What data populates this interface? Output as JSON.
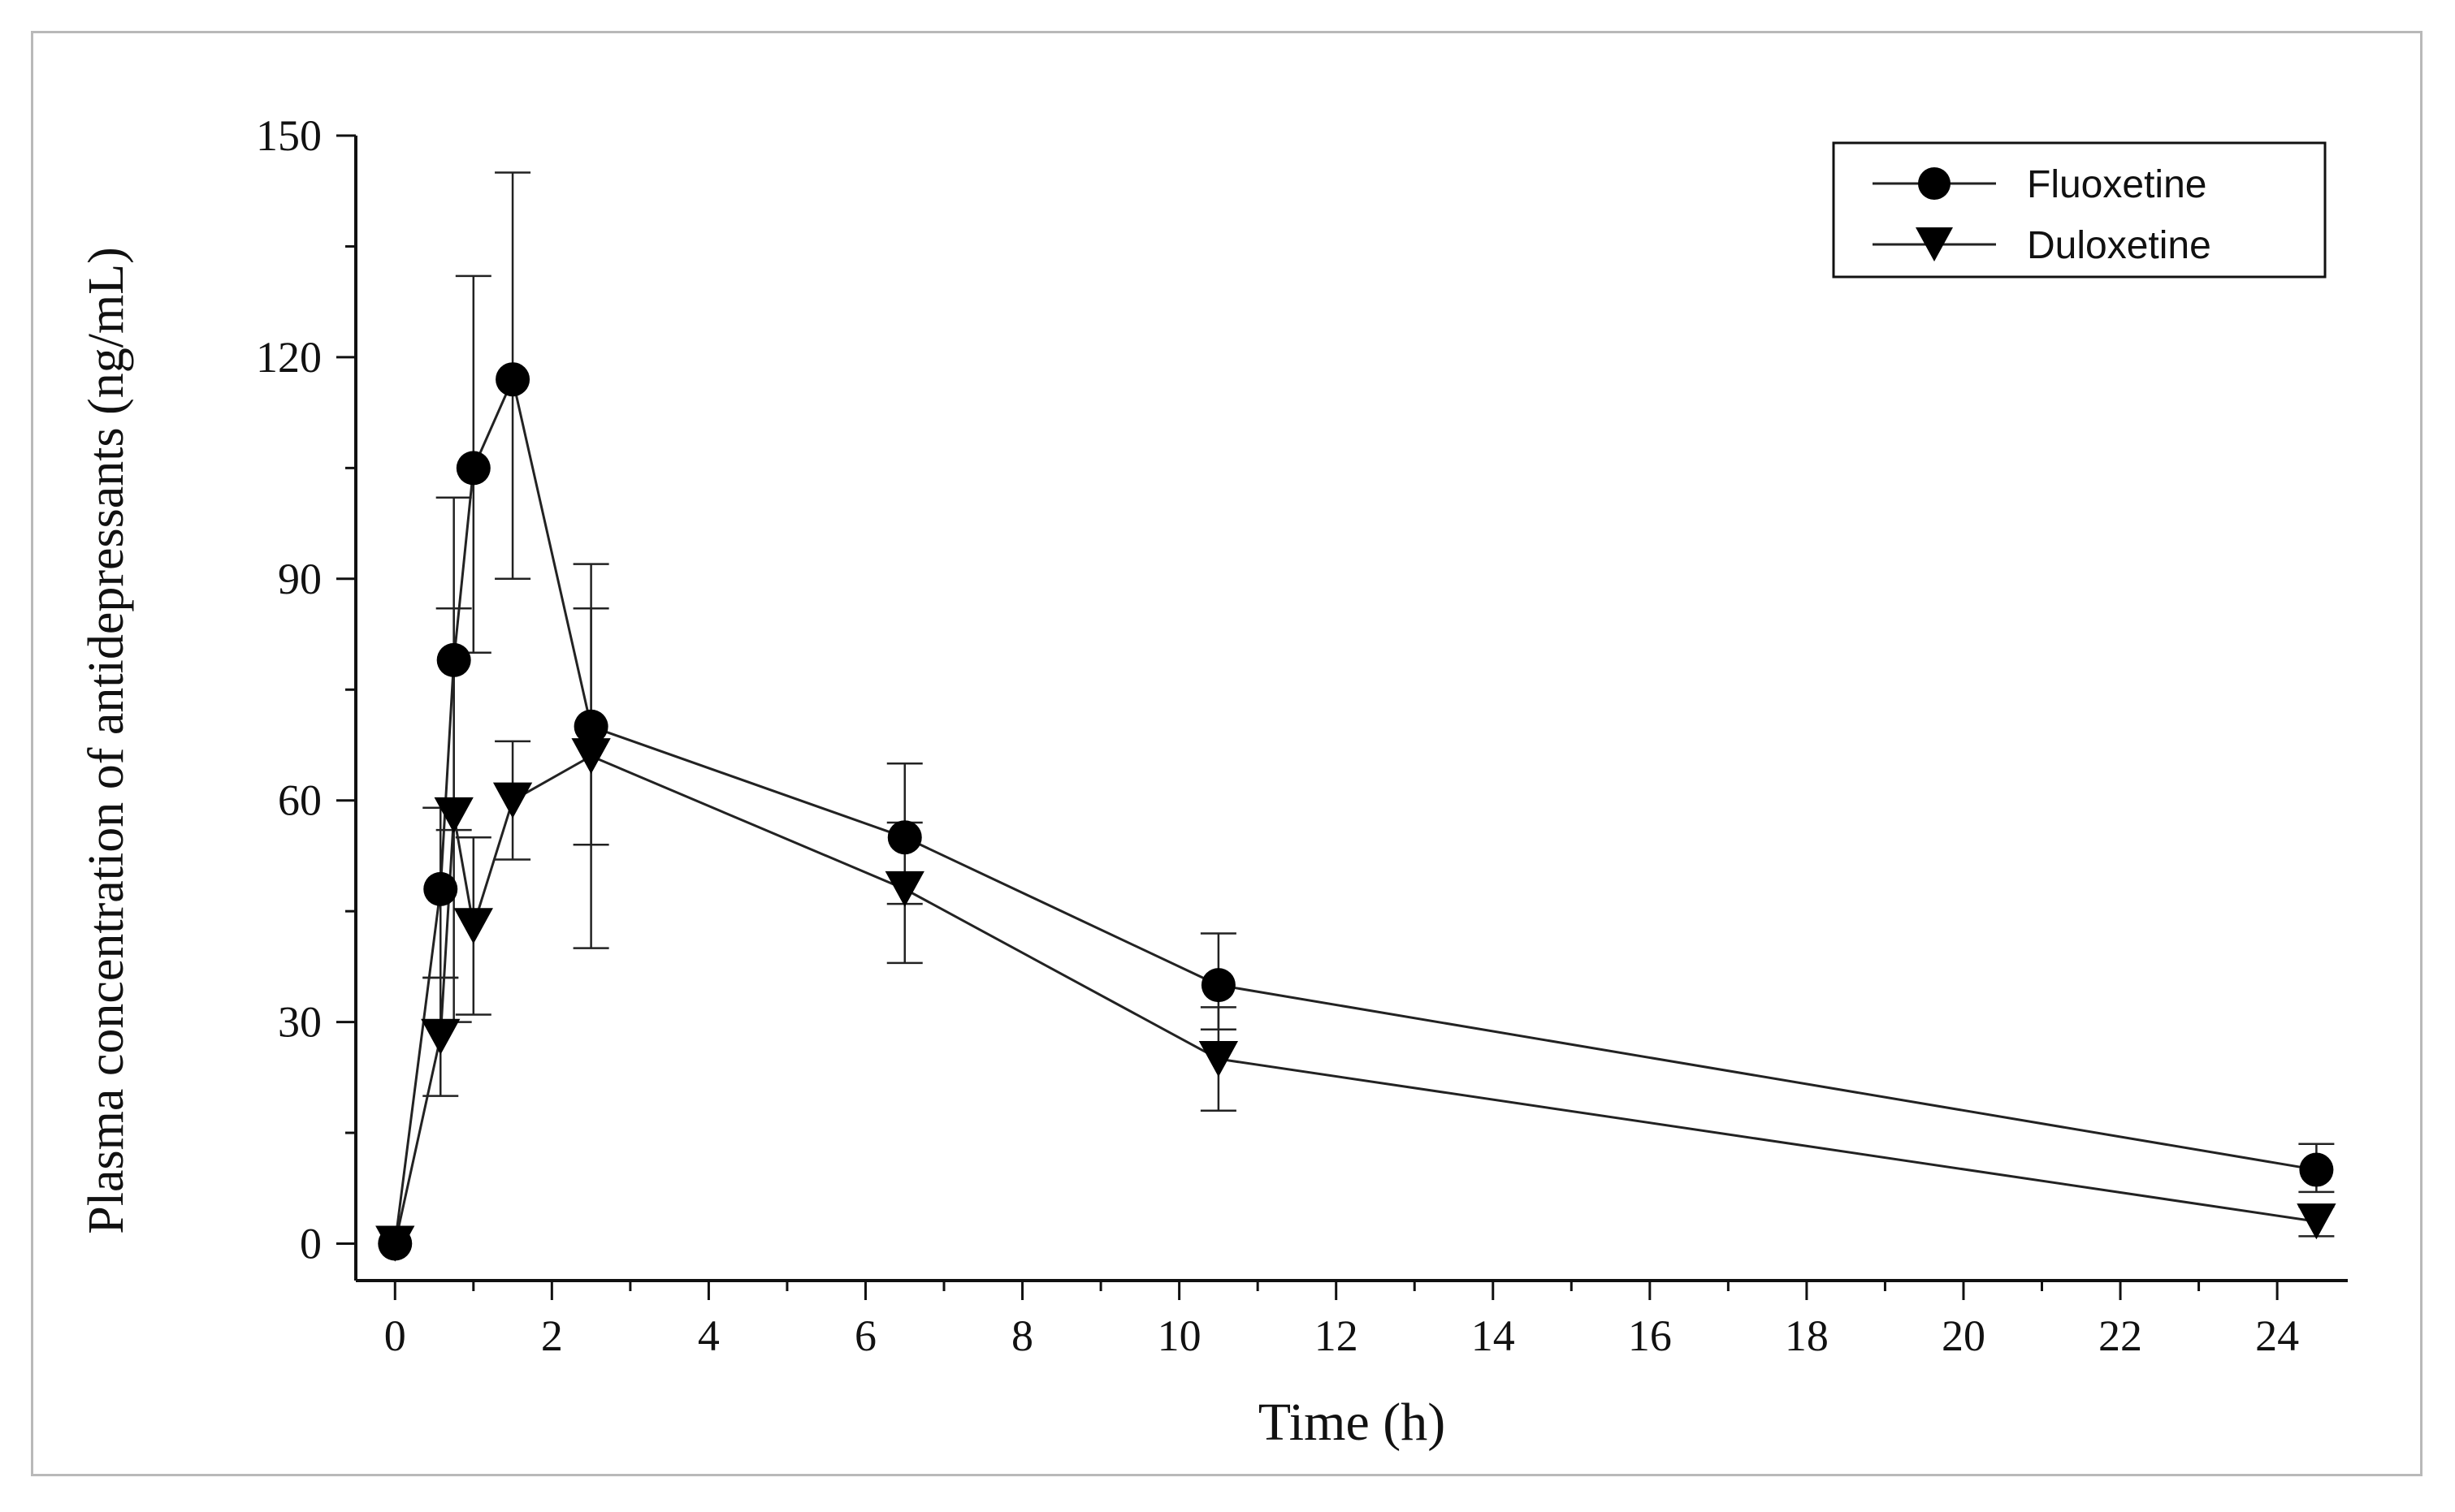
{
  "chart_data": {
    "type": "line",
    "title": "",
    "xlabel": "Time (h)",
    "ylabel": "Plasma concentration of antidepressants (ng/mL)",
    "xlim": [
      -0.5,
      24.9
    ],
    "ylim": [
      -5,
      150
    ],
    "xticks": [
      0,
      2,
      4,
      6,
      8,
      10,
      12,
      14,
      16,
      18,
      20,
      22,
      24
    ],
    "xtick_labels": [
      "0",
      "2",
      "4",
      "6",
      "8",
      "10",
      "12",
      "14",
      "16",
      "18",
      "20",
      "22",
      "24"
    ],
    "yticks": [
      0,
      30,
      60,
      90,
      120,
      150
    ],
    "ytick_labels": [
      "0",
      "30",
      "60",
      "90",
      "120",
      "150"
    ],
    "grid": false,
    "legend_position": "top-right",
    "series": [
      {
        "name": "Fluoxetine",
        "marker": "circle",
        "x": [
          0,
          0.58,
          0.75,
          1,
          1.5,
          2.5,
          6.5,
          10.5,
          24.5
        ],
        "y": [
          0,
          48,
          79,
          105,
          117,
          70,
          55,
          35,
          10
        ],
        "err_upper": [
          0,
          11,
          22,
          26,
          28,
          22,
          10,
          7,
          3.5
        ],
        "err_lower": [
          0,
          12,
          23,
          25,
          27,
          16,
          9,
          6,
          3
        ]
      },
      {
        "name": "Duloxetine",
        "marker": "triangle-down",
        "x": [
          0,
          0.58,
          0.75,
          1,
          1.5,
          2.5,
          6.5,
          10.5,
          24.5
        ],
        "y": [
          0,
          28,
          58,
          43,
          60,
          66,
          48,
          25,
          3
        ],
        "err_upper": [
          0,
          8,
          28,
          12,
          8,
          20,
          9,
          7,
          2
        ],
        "err_lower": [
          0,
          8,
          28,
          12,
          8,
          26,
          10,
          7,
          2
        ]
      }
    ]
  }
}
